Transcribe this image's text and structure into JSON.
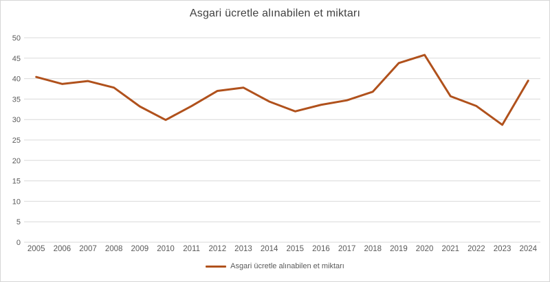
{
  "chart_data": {
    "type": "line",
    "title": "Asgari ücretle alınabilen et miktarı",
    "categories": [
      "2005",
      "2006",
      "2007",
      "2008",
      "2009",
      "2010",
      "2011",
      "2012",
      "2013",
      "2014",
      "2015",
      "2016",
      "2017",
      "2018",
      "2019",
      "2020",
      "2021",
      "2022",
      "2023",
      "2024"
    ],
    "series": [
      {
        "name": "Asgari ücretle alınabilen et miktarı",
        "values": [
          40.4,
          38.7,
          39.4,
          37.8,
          33.2,
          29.9,
          33.3,
          37.0,
          37.8,
          34.4,
          32.0,
          33.6,
          34.7,
          36.8,
          43.8,
          45.8,
          35.7,
          33.3,
          28.7,
          39.5
        ],
        "color": "#b0511c"
      }
    ],
    "xlabel": "",
    "ylabel": "",
    "ylim": [
      0,
      50
    ],
    "y_ticks": [
      0,
      5,
      10,
      15,
      20,
      25,
      30,
      35,
      40,
      45,
      50
    ],
    "grid": "horizontal-only",
    "legend_position": "bottom-center"
  },
  "style": {
    "gridline_color": "#d9d9d9",
    "tick_text_color": "#595959",
    "title_text_color": "#404040",
    "border_color": "#d6d6d6",
    "line_width": 3
  }
}
